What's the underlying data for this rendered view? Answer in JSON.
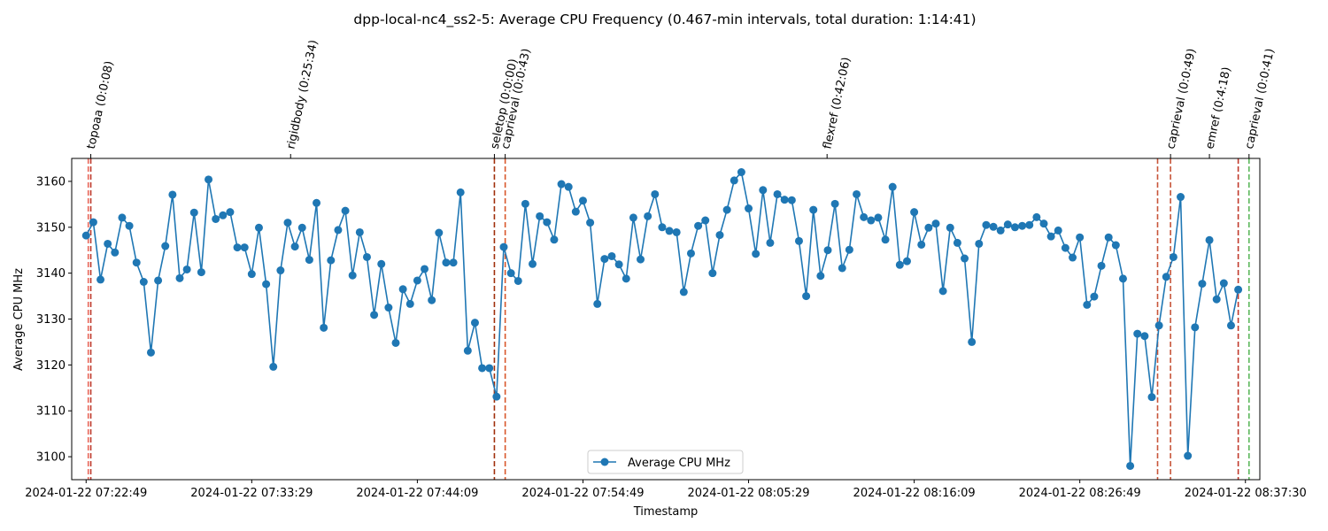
{
  "chart_data": {
    "type": "line",
    "title": "dpp-local-nc4_ss2-5: Average CPU Frequency (0.467-min intervals, total duration: 1:14:41)",
    "xlabel": "Timestamp",
    "ylabel": "Average CPU MHz",
    "ylim": [
      3095,
      3165
    ],
    "yticks": [
      3100,
      3110,
      3120,
      3130,
      3140,
      3150,
      3160
    ],
    "x_units": "index (0.467-min intervals)",
    "xlim": [
      -2,
      163
    ],
    "xticks": [
      {
        "x": 0,
        "label": "2024-01-22 07:22:49"
      },
      {
        "x": 23,
        "label": "2024-01-22 07:33:29"
      },
      {
        "x": 46,
        "label": "2024-01-22 07:44:09"
      },
      {
        "x": 69,
        "label": "2024-01-22 07:54:49"
      },
      {
        "x": 92,
        "label": "2024-01-22 08:05:29"
      },
      {
        "x": 115,
        "label": "2024-01-22 08:16:09"
      },
      {
        "x": 138,
        "label": "2024-01-22 08:26:49"
      },
      {
        "x": 161,
        "label": "2024-01-22 08:37:30"
      }
    ],
    "grid": false,
    "legend": {
      "position": "bottom-center"
    },
    "series": [
      {
        "name": "Average CPU MHz",
        "color": "#1f77b4",
        "marker": "circle",
        "values": [
          3148.2,
          3151.1,
          3138.6,
          3146.4,
          3144.5,
          3152.1,
          3150.3,
          3142.3,
          3138.1,
          3122.7,
          3138.4,
          3145.9,
          3157.1,
          3138.9,
          3140.8,
          3153.2,
          3140.2,
          3160.4,
          3151.8,
          3152.6,
          3153.3,
          3145.6,
          3145.6,
          3139.8,
          3149.9,
          3137.6,
          3119.6,
          3140.6,
          3151.0,
          3145.8,
          3149.9,
          3142.9,
          3155.3,
          3128.1,
          3142.8,
          3149.4,
          3153.6,
          3139.5,
          3148.9,
          3143.5,
          3130.9,
          3142.0,
          3132.5,
          3124.8,
          3136.5,
          3133.3,
          3138.4,
          3140.9,
          3134.1,
          3148.8,
          3142.3,
          3142.3,
          3157.6,
          3123.1,
          3129.2,
          3119.3,
          3119.3,
          3113.1,
          3145.7,
          3140.0,
          3138.3,
          3155.1,
          3142.0,
          3152.4,
          3151.1,
          3147.3,
          3159.4,
          3158.8,
          3153.4,
          3155.8,
          3151.0,
          3133.3,
          3143.1,
          3143.7,
          3141.9,
          3138.8,
          3152.1,
          3143.0,
          3152.4,
          3157.2,
          3150.0,
          3149.2,
          3148.9,
          3135.9,
          3144.3,
          3150.3,
          3151.5,
          3140.0,
          3148.3,
          3153.8,
          3160.2,
          3162.0,
          3154.1,
          3144.2,
          3158.1,
          3146.6,
          3157.2,
          3156.0,
          3155.9,
          3147.0,
          3135.0,
          3153.8,
          3139.4,
          3145.0,
          3155.1,
          3141.1,
          3145.1,
          3157.2,
          3152.2,
          3151.5,
          3152.1,
          3147.3,
          3158.8,
          3141.8,
          3142.6,
          3153.3,
          3146.2,
          3149.9,
          3150.8,
          3136.1,
          3149.9,
          3146.6,
          3143.2,
          3125.0,
          3146.4,
          3150.5,
          3150.1,
          3149.3,
          3150.6,
          3150.0,
          3150.3,
          3150.5,
          3152.2,
          3150.8,
          3148.0,
          3149.3,
          3145.5,
          3143.4,
          3147.8,
          3133.1,
          3134.9,
          3141.6,
          3147.8,
          3146.1,
          3138.8,
          3098.0,
          3126.8,
          3126.3,
          3113.0,
          3128.6,
          3139.2,
          3143.5,
          3156.6,
          3100.2,
          3128.2,
          3137.7,
          3147.2,
          3134.3,
          3137.8,
          3128.6,
          3136.4
        ]
      }
    ],
    "event_lines": [
      {
        "x": 0.3,
        "color": "#e8685a"
      },
      {
        "x": 0.65,
        "color": "#c0392b",
        "label": "topoaa (0:0:08)"
      },
      {
        "x": 56.7,
        "color": "#a0300c",
        "label": "seletop (0:0:00)"
      },
      {
        "x": 58.2,
        "color": "#d9572b",
        "label": "caprieval (0:0:43)"
      },
      {
        "x": 148.8,
        "color": "#c8553a"
      },
      {
        "x": 150.6,
        "color": "#c8553a",
        "label": "caprieval (0:0:49)"
      },
      {
        "x": 160.0,
        "color": "#c0392b"
      },
      {
        "x": 161.5,
        "color": "#5cb85c",
        "label": "caprieval (0:0:41)"
      }
    ],
    "top_labels": [
      {
        "x": 0.65,
        "text": "topoaa (0:0:08)"
      },
      {
        "x": 28.4,
        "text": "rigidbody (0:25:34)"
      },
      {
        "x": 56.7,
        "text": "seletop (0:0:00)"
      },
      {
        "x": 58.2,
        "text": "caprieval (0:0:43)"
      },
      {
        "x": 102.9,
        "text": "flexref (0:42:06)"
      },
      {
        "x": 150.6,
        "text": "caprieval (0:0:49)"
      },
      {
        "x": 156.0,
        "text": "emref (0:4:18)"
      },
      {
        "x": 161.5,
        "text": "caprieval (0:0:41)"
      }
    ]
  }
}
